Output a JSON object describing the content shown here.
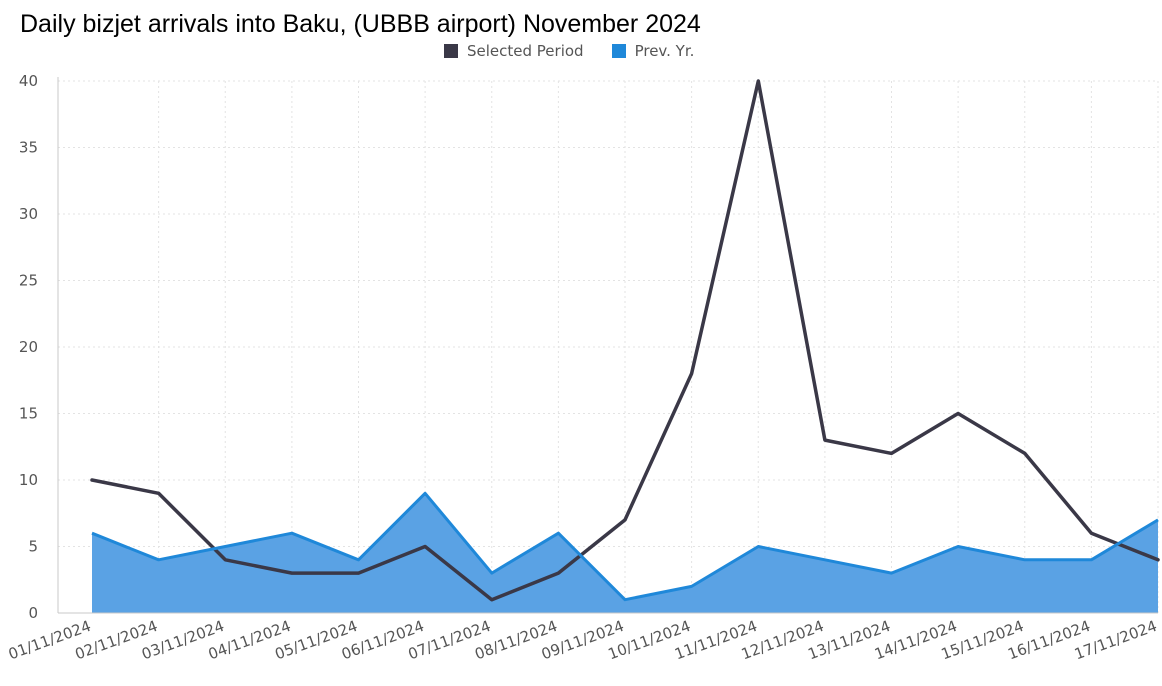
{
  "chart_data": {
    "type": "line",
    "title": "Daily bizjet arrivals into Baku, (UBBB airport) November 2024",
    "xlabel": "",
    "ylabel": "",
    "ylim": [
      0,
      40
    ],
    "yticks": [
      0,
      5,
      10,
      15,
      20,
      25,
      30,
      35,
      40
    ],
    "grid": true,
    "legend_position": "top-center",
    "categories": [
      "01/11/2024",
      "02/11/2024",
      "03/11/2024",
      "04/11/2024",
      "05/11/2024",
      "06/11/2024",
      "07/11/2024",
      "08/11/2024",
      "09/11/2024",
      "10/11/2024",
      "11/11/2024",
      "12/11/2024",
      "13/11/2024",
      "14/11/2024",
      "15/11/2024",
      "16/11/2024",
      "17/11/2024"
    ],
    "series": [
      {
        "name": "Selected Period",
        "render": "line",
        "color": "#3a3847",
        "values": [
          10,
          9,
          4,
          3,
          3,
          5,
          1,
          3,
          7,
          18,
          40,
          13,
          12,
          15,
          12,
          6,
          4
        ]
      },
      {
        "name": "Prev. Yr.",
        "render": "area",
        "color": "#1f88d9",
        "fill": "#5aa2e4",
        "values": [
          6,
          4,
          5,
          6,
          4,
          9,
          3,
          6,
          1,
          2,
          5,
          4,
          3,
          5,
          4,
          4,
          7
        ]
      }
    ]
  }
}
